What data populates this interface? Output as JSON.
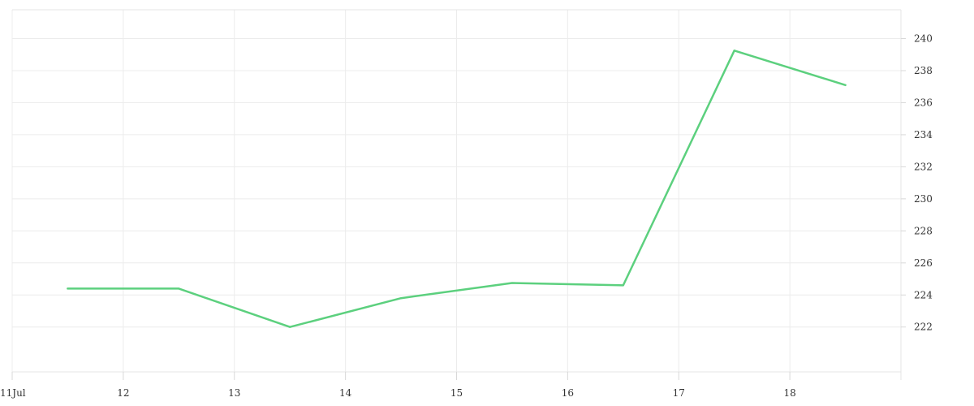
{
  "chart_data": {
    "type": "line",
    "title": "",
    "xlabel": "",
    "ylabel": "",
    "x_ticks": [
      {
        "label": "11Jul",
        "day": 11
      },
      {
        "label": "12",
        "day": 12
      },
      {
        "label": "13",
        "day": 13
      },
      {
        "label": "14",
        "day": 14
      },
      {
        "label": "15",
        "day": 15
      },
      {
        "label": "16",
        "day": 16
      },
      {
        "label": "17",
        "day": 17
      },
      {
        "label": "18",
        "day": 18
      }
    ],
    "xlim": [
      11,
      19
    ],
    "y_ticks": [
      222,
      224,
      226,
      228,
      230,
      232,
      234,
      236,
      238,
      240
    ],
    "ylim": [
      219.2,
      241.8
    ],
    "y_axis_position": "right",
    "grid": true,
    "legend": "none",
    "series": [
      {
        "color": "#5cd07e",
        "points": [
          {
            "x": 11.5,
            "y": 224.4
          },
          {
            "x": 12.5,
            "y": 224.4
          },
          {
            "x": 13.5,
            "y": 222.0
          },
          {
            "x": 14.5,
            "y": 223.8
          },
          {
            "x": 15.5,
            "y": 224.75
          },
          {
            "x": 16.5,
            "y": 224.6
          },
          {
            "x": 17.5,
            "y": 239.25
          },
          {
            "x": 18.5,
            "y": 237.1
          }
        ]
      }
    ]
  }
}
